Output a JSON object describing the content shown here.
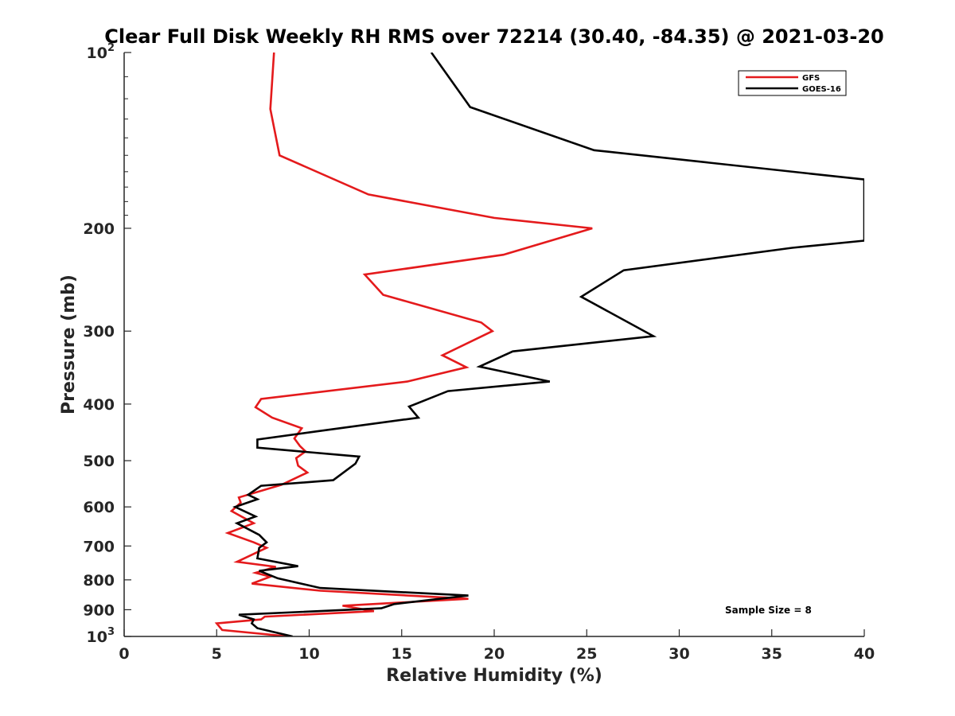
{
  "chart_data": {
    "type": "line",
    "title": "Clear Full Disk Weekly RH RMS over 72214 (30.40, -84.35) @ 2021-03-20",
    "xlabel": "Relative Humidity (%)",
    "ylabel": "Pressure (mb)",
    "xlim": [
      0,
      40
    ],
    "ylim": [
      100,
      1000
    ],
    "yscale": "log",
    "y_reversed": true,
    "xticks": [
      0,
      5,
      10,
      15,
      20,
      25,
      30,
      35,
      40
    ],
    "xtick_labels": [
      "0",
      "5",
      "10",
      "15",
      "20",
      "25",
      "30",
      "35",
      "40"
    ],
    "yticks": [
      {
        "value": 100,
        "base": "10",
        "exp": "2"
      },
      {
        "value": 200,
        "base": "200",
        "exp": ""
      },
      {
        "value": 300,
        "base": "300",
        "exp": ""
      },
      {
        "value": 400,
        "base": "400",
        "exp": ""
      },
      {
        "value": 500,
        "base": "500",
        "exp": ""
      },
      {
        "value": 600,
        "base": "600",
        "exp": ""
      },
      {
        "value": 700,
        "base": "700",
        "exp": ""
      },
      {
        "value": 800,
        "base": "800",
        "exp": ""
      },
      {
        "value": 900,
        "base": "900",
        "exp": ""
      },
      {
        "value": 1000,
        "base": "10",
        "exp": "3"
      }
    ],
    "grid": false,
    "legend_position": "top-right",
    "annotation": "Sample Size = 8",
    "series": [
      {
        "name": "GFS",
        "color": "#e41a1c",
        "points": [
          [
            8.1,
            100
          ],
          [
            7.9,
            125
          ],
          [
            8.4,
            150
          ],
          [
            13.2,
            175
          ],
          [
            20.0,
            192
          ],
          [
            25.3,
            200
          ],
          [
            20.5,
            222
          ],
          [
            13.0,
            240
          ],
          [
            14.0,
            260
          ],
          [
            19.3,
            290
          ],
          [
            19.9,
            300
          ],
          [
            17.2,
            330
          ],
          [
            18.5,
            346
          ],
          [
            15.3,
            366
          ],
          [
            7.4,
            392
          ],
          [
            7.1,
            405
          ],
          [
            8.0,
            422
          ],
          [
            9.6,
            440
          ],
          [
            9.2,
            458
          ],
          [
            9.5,
            472
          ],
          [
            9.8,
            482
          ],
          [
            9.3,
            495
          ],
          [
            9.4,
            510
          ],
          [
            9.9,
            524
          ],
          [
            8.5,
            550
          ],
          [
            6.2,
            578
          ],
          [
            6.3,
            590
          ],
          [
            5.8,
            610
          ],
          [
            7.0,
            640
          ],
          [
            5.6,
            665
          ],
          [
            7.0,
            690
          ],
          [
            7.7,
            705
          ],
          [
            6.1,
            745
          ],
          [
            8.2,
            760
          ],
          [
            7.1,
            778
          ],
          [
            7.9,
            790
          ],
          [
            6.9,
            812
          ],
          [
            10.6,
            835
          ],
          [
            18.6,
            862
          ],
          [
            11.8,
            886
          ],
          [
            13.5,
            905
          ],
          [
            7.6,
            925
          ],
          [
            7.4,
            935
          ],
          [
            5.0,
            950
          ],
          [
            5.3,
            975
          ],
          [
            8.9,
            1000
          ]
        ]
      },
      {
        "name": "GOES-16",
        "color": "#000000",
        "points": [
          [
            16.6,
            100
          ],
          [
            18.7,
            124
          ],
          [
            25.4,
            147
          ],
          [
            40.0,
            165
          ],
          [
            40.0,
            210
          ],
          [
            36.1,
            216
          ],
          [
            27.0,
            236
          ],
          [
            24.7,
            262
          ],
          [
            28.6,
            306
          ],
          [
            21.0,
            325
          ],
          [
            19.2,
            345
          ],
          [
            23.0,
            366
          ],
          [
            17.5,
            380
          ],
          [
            15.4,
            404
          ],
          [
            15.9,
            422
          ],
          [
            10.5,
            445
          ],
          [
            7.2,
            460
          ],
          [
            7.2,
            475
          ],
          [
            12.7,
            492
          ],
          [
            12.5,
            506
          ],
          [
            11.3,
            540
          ],
          [
            7.4,
            552
          ],
          [
            6.7,
            572
          ],
          [
            7.2,
            582
          ],
          [
            6.0,
            600
          ],
          [
            7.1,
            623
          ],
          [
            6.1,
            640
          ],
          [
            7.3,
            670
          ],
          [
            7.7,
            690
          ],
          [
            7.3,
            705
          ],
          [
            7.2,
            735
          ],
          [
            9.4,
            758
          ],
          [
            7.3,
            772
          ],
          [
            8.3,
            795
          ],
          [
            10.6,
            826
          ],
          [
            18.6,
            851
          ],
          [
            14.6,
            880
          ],
          [
            13.9,
            895
          ],
          [
            6.2,
            918
          ],
          [
            7.0,
            935
          ],
          [
            6.9,
            950
          ],
          [
            7.2,
            968
          ],
          [
            9.1,
            1000
          ]
        ]
      }
    ]
  }
}
